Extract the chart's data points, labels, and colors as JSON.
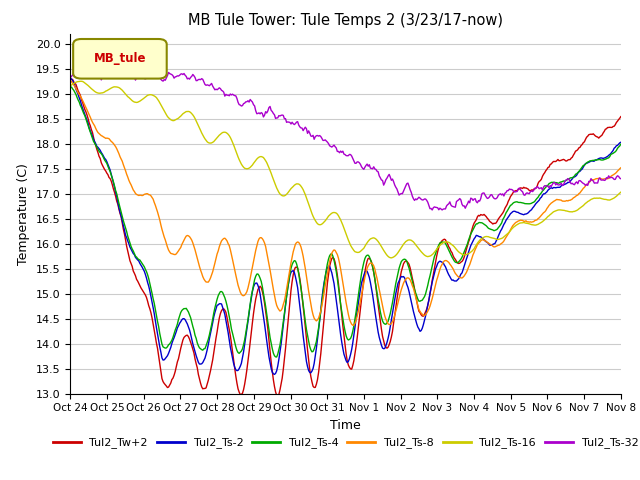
{
  "title": "MB Tule Tower: Tule Temps 2 (3/23/17-now)",
  "xlabel": "Time",
  "ylabel": "Temperature (C)",
  "ylim": [
    13.0,
    20.2
  ],
  "yticks": [
    13.0,
    13.5,
    14.0,
    14.5,
    15.0,
    15.5,
    16.0,
    16.5,
    17.0,
    17.5,
    18.0,
    18.5,
    19.0,
    19.5,
    20.0
  ],
  "xtick_labels": [
    "Oct 24",
    "Oct 25",
    "Oct 26",
    "Oct 27",
    "Oct 28",
    "Oct 29",
    "Oct 30",
    "Oct 31",
    "Nov 1",
    "Nov 2",
    "Nov 3",
    "Nov 4",
    "Nov 5",
    "Nov 6",
    "Nov 7",
    "Nov 8"
  ],
  "series": {
    "Tul2_Tw+2": {
      "color": "#cc0000"
    },
    "Tul2_Ts-2": {
      "color": "#0000cc"
    },
    "Tul2_Ts-4": {
      "color": "#00aa00"
    },
    "Tul2_Ts-8": {
      "color": "#ff8800"
    },
    "Tul2_Ts-16": {
      "color": "#cccc00"
    },
    "Tul2_Ts-32": {
      "color": "#aa00cc"
    }
  },
  "legend_label": "MB_tule",
  "background_color": "#ffffff",
  "grid_color": "#cccccc",
  "figsize": [
    6.4,
    4.8
  ],
  "dpi": 100
}
